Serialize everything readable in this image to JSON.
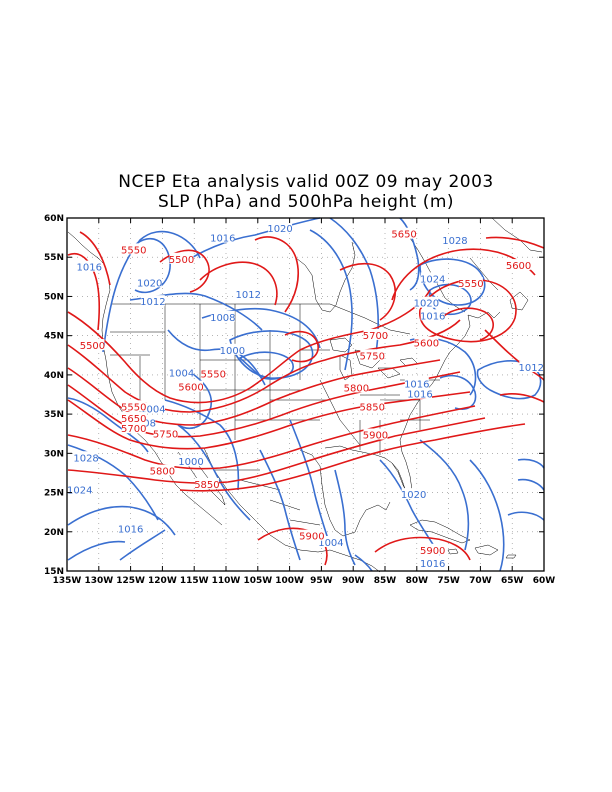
{
  "title": {
    "line1": "NCEP Eta analysis valid 00Z 09 may 2003",
    "line2": "SLP (hPa) and 500hPa height (m)"
  },
  "map": {
    "lon_range": [
      -135,
      -60
    ],
    "lat_range": [
      15,
      60
    ],
    "grid": "dotted",
    "colors": {
      "slp": "#3a6fd0",
      "height": "#e01818",
      "coast": "#000000",
      "frame": "#000000"
    },
    "y_ticks": [
      "15N",
      "20N",
      "25N",
      "30N",
      "35N",
      "40N",
      "45N",
      "50N",
      "55N",
      "60N"
    ],
    "x_ticks": [
      "135W",
      "130W",
      "125W",
      "120W",
      "115W",
      "110W",
      "105W",
      "100W",
      "95W",
      "90W",
      "85W",
      "80W",
      "75W",
      "70W",
      "65W",
      "60W"
    ]
  },
  "slp_labels": [
    {
      "text": "1020",
      "lon": -101.5,
      "lat": 58.7
    },
    {
      "text": "1028",
      "lon": -74.0,
      "lat": 57.2
    },
    {
      "text": "1016",
      "lon": -110.5,
      "lat": 57.5
    },
    {
      "text": "1016",
      "lon": -131.5,
      "lat": 53.8
    },
    {
      "text": "1020",
      "lon": -122.0,
      "lat": 51.8
    },
    {
      "text": "1012",
      "lon": -121.5,
      "lat": 49.4
    },
    {
      "text": "1012",
      "lon": -106.5,
      "lat": 50.3
    },
    {
      "text": "1024",
      "lon": -77.5,
      "lat": 52.3
    },
    {
      "text": "1020",
      "lon": -78.5,
      "lat": 49.2
    },
    {
      "text": "1016",
      "lon": -77.5,
      "lat": 47.6
    },
    {
      "text": "1008",
      "lon": -110.5,
      "lat": 47.4
    },
    {
      "text": "1000",
      "lon": -109.0,
      "lat": 43.2
    },
    {
      "text": "1004",
      "lon": -117.0,
      "lat": 40.3
    },
    {
      "text": "1004",
      "lon": -121.5,
      "lat": 35.7
    },
    {
      "text": "1008",
      "lon": -123.0,
      "lat": 33.9
    },
    {
      "text": "1012",
      "lon": -62.0,
      "lat": 41.0
    },
    {
      "text": "1016",
      "lon": -80.0,
      "lat": 38.9
    },
    {
      "text": "1016",
      "lon": -79.5,
      "lat": 37.6
    },
    {
      "text": "1028",
      "lon": -132.0,
      "lat": 29.5
    },
    {
      "text": "1024",
      "lon": -133.0,
      "lat": 25.4
    },
    {
      "text": "1000",
      "lon": -115.5,
      "lat": 29.0
    },
    {
      "text": "1020",
      "lon": -80.5,
      "lat": 24.8
    },
    {
      "text": "1016",
      "lon": -125.0,
      "lat": 20.4
    },
    {
      "text": "1004",
      "lon": -93.5,
      "lat": 18.7
    },
    {
      "text": "1016",
      "lon": -77.5,
      "lat": 16.0
    }
  ],
  "hgt_labels": [
    {
      "text": "5550",
      "lon": -124.5,
      "lat": 56.0
    },
    {
      "text": "5500",
      "lon": -117.0,
      "lat": 54.8
    },
    {
      "text": "5650",
      "lon": -82.0,
      "lat": 58.0
    },
    {
      "text": "5600",
      "lon": -64.0,
      "lat": 54.0
    },
    {
      "text": "5550",
      "lon": -71.5,
      "lat": 51.7
    },
    {
      "text": "5500",
      "lon": -131.0,
      "lat": 43.8
    },
    {
      "text": "5700",
      "lon": -86.5,
      "lat": 45.1
    },
    {
      "text": "5600",
      "lon": -78.5,
      "lat": 44.1
    },
    {
      "text": "5750",
      "lon": -87.0,
      "lat": 42.5
    },
    {
      "text": "5550",
      "lon": -112.0,
      "lat": 40.2
    },
    {
      "text": "5600",
      "lon": -115.5,
      "lat": 38.5
    },
    {
      "text": "5800",
      "lon": -89.5,
      "lat": 38.4
    },
    {
      "text": "5850",
      "lon": -87.0,
      "lat": 36.0
    },
    {
      "text": "5550",
      "lon": -124.5,
      "lat": 36.0
    },
    {
      "text": "5650",
      "lon": -124.5,
      "lat": 34.5
    },
    {
      "text": "5700",
      "lon": -124.5,
      "lat": 33.2
    },
    {
      "text": "5750",
      "lon": -119.5,
      "lat": 32.5
    },
    {
      "text": "5900",
      "lon": -86.5,
      "lat": 32.4
    },
    {
      "text": "5800",
      "lon": -120.0,
      "lat": 27.8
    },
    {
      "text": "5850",
      "lon": -113.0,
      "lat": 26.1
    },
    {
      "text": "5900",
      "lon": -96.5,
      "lat": 19.5
    },
    {
      "text": "5900",
      "lon": -77.5,
      "lat": 17.7
    }
  ]
}
